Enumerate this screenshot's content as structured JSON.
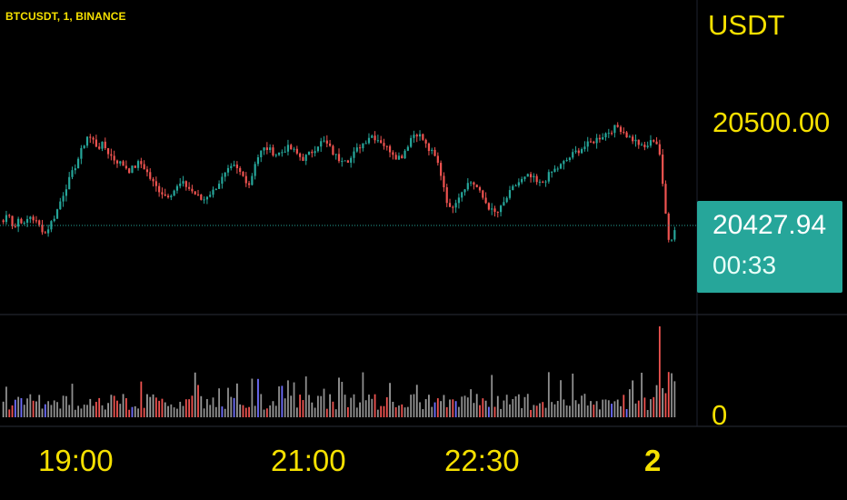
{
  "header": {
    "symbol": "BTCUSDT, 1, BINANCE"
  },
  "price_axis": {
    "currency": "USDT",
    "tick": "20500.00"
  },
  "last": {
    "price": "20427.94",
    "timer": "00:33",
    "color": "#26a69a"
  },
  "volume_axis": {
    "tick": "0"
  },
  "time_axis": {
    "labels": [
      "19:00",
      "21:00",
      "22:30",
      "2"
    ]
  },
  "colors": {
    "up": "#26a69a",
    "down": "#ef5350",
    "text": "#f5e000",
    "background": "#000000",
    "divider": "#2a2e39"
  },
  "chart_data": {
    "type": "candlestick",
    "interval": "1",
    "exchange": "BINANCE",
    "symbol": "BTCUSDT",
    "x_labels": [
      "19:00",
      "21:00",
      "22:30",
      "2"
    ],
    "y_tick": 20500.0,
    "last_price": 20427.94,
    "close_series": [
      20433,
      20440,
      20428,
      20436,
      20431,
      20437,
      20434,
      20430,
      20426,
      20432,
      20438,
      20447,
      20455,
      20462,
      20470,
      20478,
      20486,
      20484,
      20479,
      20481,
      20476,
      20472,
      20470,
      20468,
      20465,
      20467,
      20470,
      20466,
      20460,
      20455,
      20452,
      20449,
      20451,
      20454,
      20457,
      20455,
      20452,
      20449,
      20446,
      20450,
      20452,
      20457,
      20461,
      20465,
      20467,
      20464,
      20460,
      20456,
      20470,
      20476,
      20479,
      20477,
      20475,
      20476,
      20479,
      20478,
      20475,
      20472,
      20474,
      20477,
      20481,
      20483,
      20480,
      20475,
      20472,
      20473,
      20471,
      20476,
      20480,
      20483,
      20487,
      20485,
      20483,
      20479,
      20477,
      20473,
      20474,
      20480,
      20487,
      20488,
      20484,
      20478,
      20475,
      20468,
      20455,
      20440,
      20445,
      20450,
      20455,
      20458,
      20456,
      20450,
      20445,
      20440,
      20438,
      20442,
      20448,
      20453,
      20457,
      20459,
      20461,
      20460,
      20456,
      20458,
      20462,
      20465,
      20467,
      20470,
      20473,
      20476,
      20478,
      20480,
      20482,
      20484,
      20486,
      20488,
      20490,
      20492,
      20490,
      20486,
      20484,
      20482,
      20478,
      20481,
      20484,
      20480,
      20445,
      20420,
      20428
    ]
  },
  "volume_data": {
    "bar_count": 225,
    "spike_ratio": 1.0
  }
}
